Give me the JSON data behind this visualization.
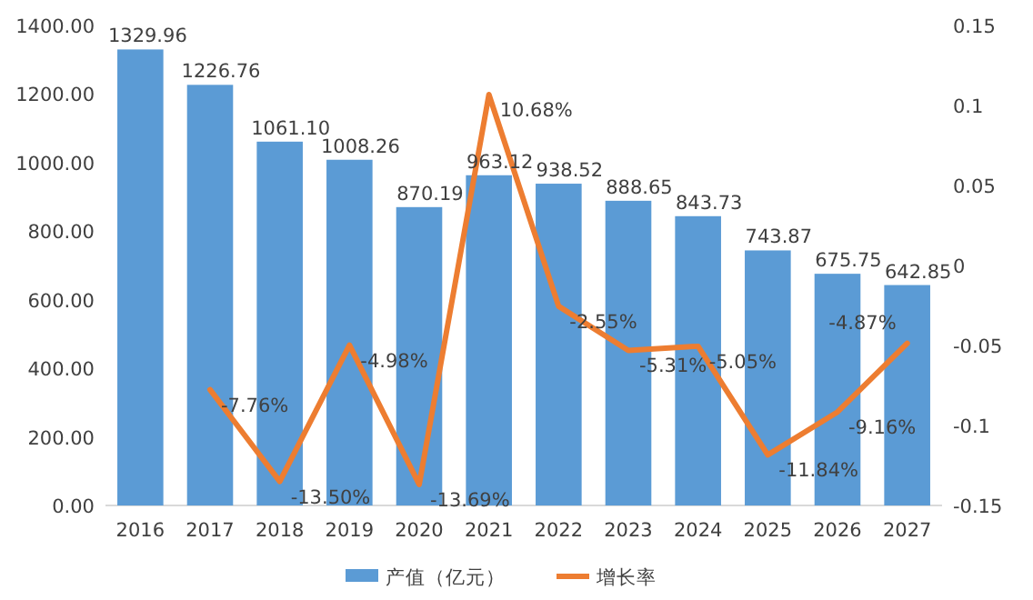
{
  "chart_data": {
    "type": "bar",
    "categories": [
      "2016",
      "2017",
      "2018",
      "2019",
      "2020",
      "2021",
      "2022",
      "2023",
      "2024",
      "2025",
      "2026",
      "2027"
    ],
    "series": [
      {
        "name": "产值（亿元）",
        "color": "#5b9bd5",
        "values": [
          1329.96,
          1226.76,
          1061.1,
          1008.26,
          870.19,
          963.12,
          938.52,
          888.65,
          843.73,
          743.87,
          675.75,
          642.85
        ],
        "value_labels": [
          "1329.96",
          "1226.76",
          "1061.10",
          "1008.26",
          "870.19",
          "963.12",
          "938.52",
          "888.65",
          "843.73",
          "743.87",
          "675.75",
          "642.85"
        ]
      },
      {
        "type": "line",
        "name": "增长率",
        "color": "#ed7d31",
        "axis": "y2",
        "values": [
          null,
          -0.0776,
          -0.135,
          -0.0498,
          -0.1369,
          0.1068,
          -0.0255,
          -0.0531,
          -0.0505,
          -0.1184,
          -0.0916,
          -0.0487
        ],
        "value_labels": [
          null,
          "-7.76%",
          "-13.50%",
          "-4.98%",
          "-13.69%",
          "10.68%",
          "-2.55%",
          "-5.31%",
          "-5.05%",
          "-11.84%",
          "-9.16%",
          "-4.87%"
        ]
      }
    ],
    "ylim": [
      0,
      1400
    ],
    "yticks": [
      {
        "value": 0,
        "label": "0.00"
      },
      {
        "value": 200,
        "label": "200.00"
      },
      {
        "value": 400,
        "label": "400.00"
      },
      {
        "value": 600,
        "label": "600.00"
      },
      {
        "value": 800,
        "label": "800.00"
      },
      {
        "value": 1000,
        "label": "1000.00"
      },
      {
        "value": 1200,
        "label": "1200.00"
      },
      {
        "value": 1400,
        "label": "1400.00"
      }
    ],
    "y2lim": [
      -0.15,
      0.15
    ],
    "y2ticks": [
      -0.15,
      -0.1,
      -0.05,
      0,
      0.05,
      0.1,
      0.15
    ],
    "legend": "bottom"
  }
}
